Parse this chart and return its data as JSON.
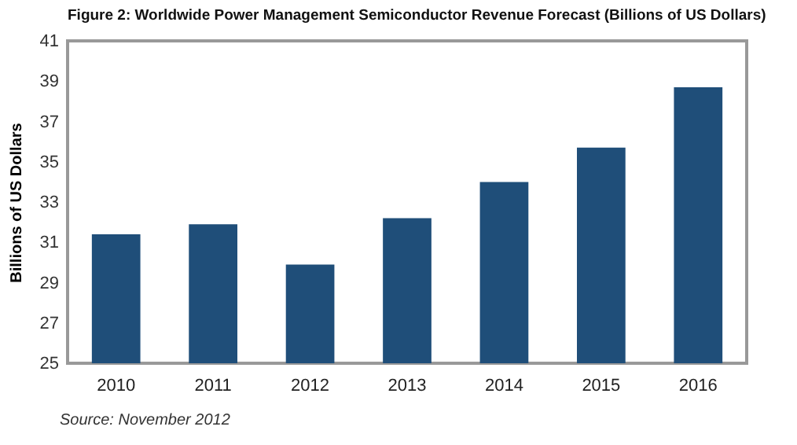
{
  "chart_data": {
    "type": "bar",
    "title": "Figure 2: Worldwide Power Management Semiconductor Revenue Forecast (Billions of US Dollars)",
    "ylabel": "Billions of US Dollars",
    "categories": [
      "2010",
      "2011",
      "2012",
      "2013",
      "2014",
      "2015",
      "2016"
    ],
    "values": [
      31.4,
      31.9,
      29.9,
      32.2,
      34.0,
      35.7,
      38.7
    ],
    "color": "#1f4e79",
    "ylim": [
      25,
      41
    ],
    "yticks": [
      25,
      27,
      29,
      31,
      33,
      35,
      37,
      39,
      41
    ],
    "grid": false,
    "annotations": [
      "Source: November 2012"
    ]
  }
}
